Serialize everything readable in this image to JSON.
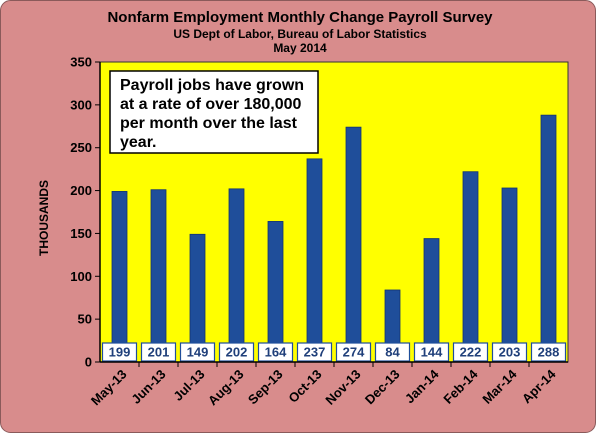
{
  "chart_data": {
    "type": "bar",
    "title": "Nonfarm Employment Monthly Change Payroll Survey",
    "subtitle_lines": [
      "US Dept of Labor, Bureau  of Labor Statistics",
      "May 2014"
    ],
    "xlabel": "",
    "ylabel": "THOUSANDS",
    "ylim": [
      0,
      350
    ],
    "yticks": [
      0,
      50,
      100,
      150,
      200,
      250,
      300,
      350
    ],
    "categories": [
      "May-13",
      "Jun-13",
      "Jul-13",
      "Aug-13",
      "Sep-13",
      "Oct-13",
      "Nov-13",
      "Dec-13",
      "Jan-14",
      "Feb-14",
      "Mar-14",
      "Apr-14"
    ],
    "values": [
      199,
      201,
      149,
      202,
      164,
      237,
      274,
      84,
      144,
      222,
      203,
      288
    ],
    "data_labels": [
      "199",
      "201",
      "149",
      "202",
      "164",
      "237",
      "274",
      "84",
      "144",
      "222",
      "203",
      "288"
    ],
    "annotation_lines": [
      "Payroll jobs have grown",
      "at a rate of over 180,000",
      "per month over the last",
      "year."
    ],
    "grid": false,
    "legend": "none",
    "colors": {
      "outer_background": "#d88c8c",
      "plot_background": "#ffff00",
      "bar": "#1f4e9a",
      "bar_edge": "#123470",
      "label_box": "#ffffff",
      "label_box_border": "#1f4e9a",
      "label_text": "#1f3f7a"
    }
  }
}
